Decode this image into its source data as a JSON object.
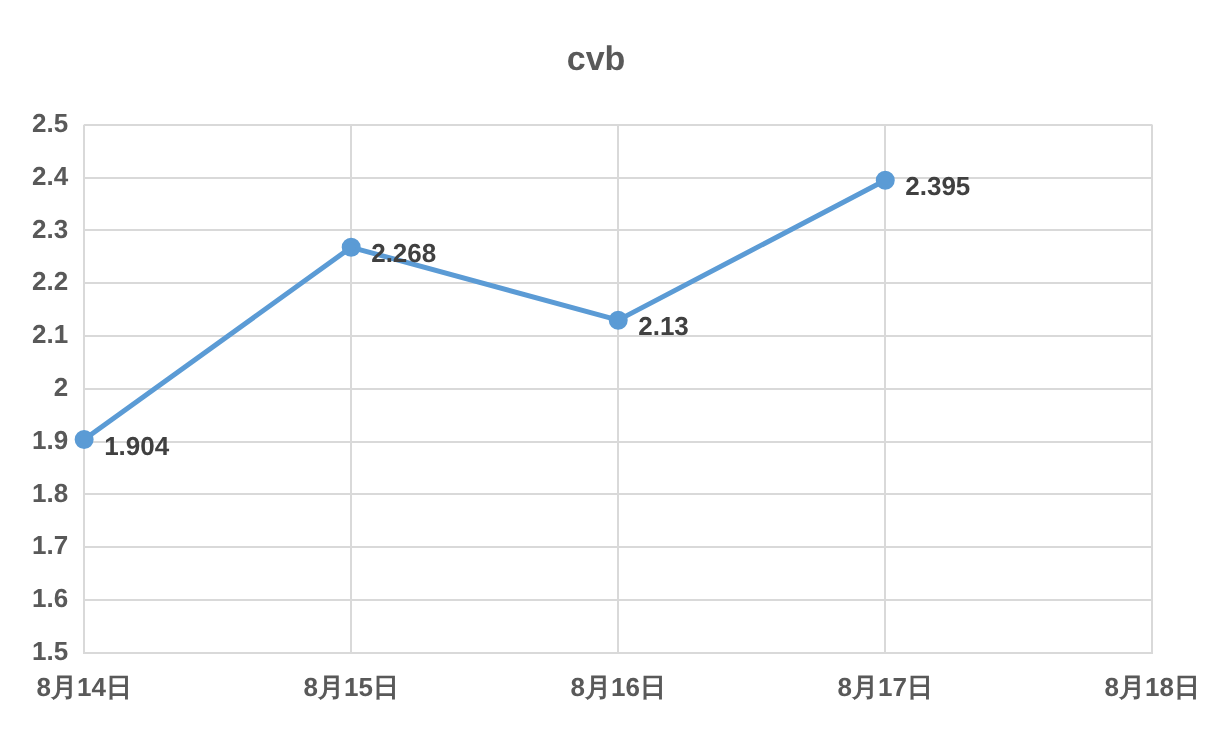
{
  "chart_data": {
    "type": "line",
    "title": "cvb",
    "categories": [
      "8月14日",
      "8月15日",
      "8月16日",
      "8月17日",
      "8月18日"
    ],
    "values": [
      1.904,
      2.268,
      2.13,
      2.395,
      null
    ],
    "color": "#5b9bd5",
    "ylim": [
      1.5,
      2.5
    ],
    "yticks": [
      1.5,
      1.6,
      1.7,
      1.8,
      1.9,
      2,
      2.1,
      2.2,
      2.3,
      2.4,
      2.5
    ],
    "grid": true,
    "data_labels": true,
    "marker": "circle",
    "line_style": "solid",
    "legend": false
  }
}
